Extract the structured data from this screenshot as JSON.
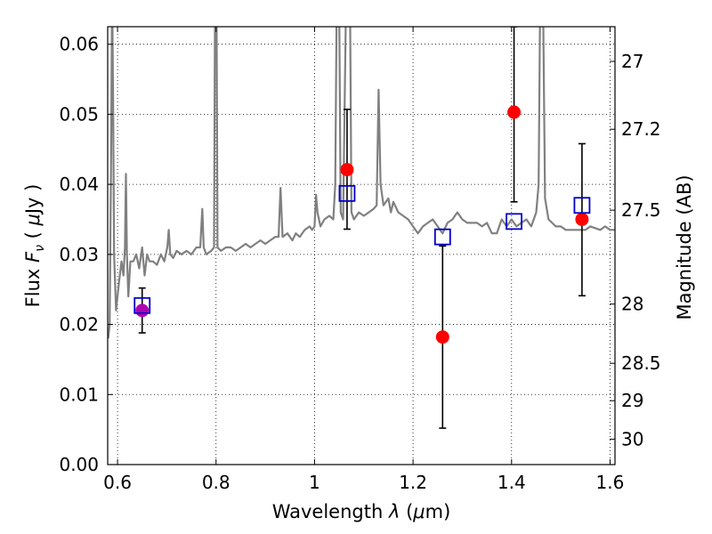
{
  "chart_data": {
    "type": "scatter",
    "xlabel": "Wavelength  λ (μm)",
    "ylabel": "Flux  Fν  ( μJy )",
    "ylabel_right": "Magnitude (AB)",
    "xlim": [
      0.58,
      1.61
    ],
    "ylim": [
      0.0,
      0.0625
    ],
    "grid": true,
    "x_ticks": [
      0.6,
      0.8,
      1.0,
      1.2,
      1.4,
      1.6
    ],
    "x_tick_labels": [
      "0.6",
      "0.8",
      "1",
      "1.2",
      "1.4",
      "1.6"
    ],
    "y_ticks": [
      0.0,
      0.01,
      0.02,
      0.03,
      0.04,
      0.05,
      0.06
    ],
    "y_tick_labels": [
      "0.00",
      "0.01",
      "0.02",
      "0.03",
      "0.04",
      "0.05",
      "0.06"
    ],
    "right_ticks": [
      {
        "mag": 27,
        "label": "27"
      },
      {
        "mag": 27.2,
        "label": "27.2"
      },
      {
        "mag": 27.5,
        "label": "27.5"
      },
      {
        "mag": 28,
        "label": "28"
      },
      {
        "mag": 28.5,
        "label": "28.5"
      },
      {
        "mag": 29,
        "label": "29"
      },
      {
        "mag": 30,
        "label": "30"
      }
    ],
    "series": [
      {
        "kind": "model_spectrum",
        "color": "#808080",
        "points": [
          [
            0.581,
            0.018
          ],
          [
            0.584,
            0.02
          ],
          [
            0.587,
            0.045
          ],
          [
            0.589,
            0.068
          ],
          [
            0.591,
            0.052
          ],
          [
            0.593,
            0.03
          ],
          [
            0.597,
            0.022
          ],
          [
            0.603,
            0.026
          ],
          [
            0.608,
            0.029
          ],
          [
            0.612,
            0.027
          ],
          [
            0.615,
            0.031
          ],
          [
            0.617,
            0.0415
          ],
          [
            0.619,
            0.03
          ],
          [
            0.622,
            0.024
          ],
          [
            0.626,
            0.029
          ],
          [
            0.632,
            0.029
          ],
          [
            0.638,
            0.03
          ],
          [
            0.644,
            0.028
          ],
          [
            0.65,
            0.031
          ],
          [
            0.655,
            0.027
          ],
          [
            0.66,
            0.03
          ],
          [
            0.665,
            0.029
          ],
          [
            0.672,
            0.029
          ],
          [
            0.68,
            0.0285
          ],
          [
            0.688,
            0.03
          ],
          [
            0.695,
            0.029
          ],
          [
            0.701,
            0.031
          ],
          [
            0.704,
            0.0335
          ],
          [
            0.707,
            0.03
          ],
          [
            0.713,
            0.0295
          ],
          [
            0.72,
            0.0305
          ],
          [
            0.73,
            0.03
          ],
          [
            0.74,
            0.0305
          ],
          [
            0.75,
            0.03
          ],
          [
            0.76,
            0.031
          ],
          [
            0.768,
            0.031
          ],
          [
            0.772,
            0.0365
          ],
          [
            0.775,
            0.031
          ],
          [
            0.78,
            0.03
          ],
          [
            0.79,
            0.0305
          ],
          [
            0.796,
            0.031
          ],
          [
            0.798,
            0.066
          ],
          [
            0.801,
            0.066
          ],
          [
            0.803,
            0.031
          ],
          [
            0.81,
            0.0305
          ],
          [
            0.82,
            0.031
          ],
          [
            0.83,
            0.031
          ],
          [
            0.84,
            0.0305
          ],
          [
            0.85,
            0.031
          ],
          [
            0.86,
            0.0315
          ],
          [
            0.87,
            0.031
          ],
          [
            0.88,
            0.0315
          ],
          [
            0.89,
            0.032
          ],
          [
            0.9,
            0.0315
          ],
          [
            0.91,
            0.032
          ],
          [
            0.92,
            0.0325
          ],
          [
            0.927,
            0.0325
          ],
          [
            0.931,
            0.0395
          ],
          [
            0.935,
            0.0325
          ],
          [
            0.945,
            0.033
          ],
          [
            0.955,
            0.032
          ],
          [
            0.962,
            0.033
          ],
          [
            0.97,
            0.0325
          ],
          [
            0.98,
            0.0335
          ],
          [
            0.99,
            0.034
          ],
          [
            0.995,
            0.0335
          ],
          [
            1.0,
            0.034
          ],
          [
            1.003,
            0.0385
          ],
          [
            1.006,
            0.036
          ],
          [
            1.012,
            0.034
          ],
          [
            1.02,
            0.035
          ],
          [
            1.03,
            0.0355
          ],
          [
            1.038,
            0.035
          ],
          [
            1.042,
            0.04
          ],
          [
            1.045,
            0.066
          ],
          [
            1.05,
            0.066
          ],
          [
            1.053,
            0.036
          ],
          [
            1.058,
            0.035
          ],
          [
            1.064,
            0.066
          ],
          [
            1.072,
            0.066
          ],
          [
            1.075,
            0.036
          ],
          [
            1.08,
            0.035
          ],
          [
            1.09,
            0.036
          ],
          [
            1.1,
            0.0355
          ],
          [
            1.11,
            0.036
          ],
          [
            1.12,
            0.0365
          ],
          [
            1.126,
            0.037
          ],
          [
            1.13,
            0.0535
          ],
          [
            1.134,
            0.04
          ],
          [
            1.14,
            0.037
          ],
          [
            1.15,
            0.038
          ],
          [
            1.155,
            0.036
          ],
          [
            1.16,
            0.0375
          ],
          [
            1.17,
            0.036
          ],
          [
            1.18,
            0.0355
          ],
          [
            1.19,
            0.035
          ],
          [
            1.2,
            0.034
          ],
          [
            1.21,
            0.033
          ],
          [
            1.22,
            0.034
          ],
          [
            1.23,
            0.0345
          ],
          [
            1.24,
            0.035
          ],
          [
            1.25,
            0.034
          ],
          [
            1.26,
            0.033
          ],
          [
            1.27,
            0.0345
          ],
          [
            1.28,
            0.035
          ],
          [
            1.29,
            0.036
          ],
          [
            1.3,
            0.035
          ],
          [
            1.31,
            0.0345
          ],
          [
            1.32,
            0.0345
          ],
          [
            1.33,
            0.0345
          ],
          [
            1.34,
            0.034
          ],
          [
            1.35,
            0.0345
          ],
          [
            1.36,
            0.033
          ],
          [
            1.37,
            0.033
          ],
          [
            1.38,
            0.035
          ],
          [
            1.385,
            0.0345
          ],
          [
            1.39,
            0.034
          ],
          [
            1.4,
            0.035
          ],
          [
            1.41,
            0.034
          ],
          [
            1.42,
            0.0345
          ],
          [
            1.43,
            0.035
          ],
          [
            1.44,
            0.034
          ],
          [
            1.45,
            0.036
          ],
          [
            1.455,
            0.04
          ],
          [
            1.458,
            0.066
          ],
          [
            1.464,
            0.066
          ],
          [
            1.468,
            0.038
          ],
          [
            1.475,
            0.035
          ],
          [
            1.49,
            0.034
          ],
          [
            1.5,
            0.034
          ],
          [
            1.51,
            0.0335
          ],
          [
            1.53,
            0.0335
          ],
          [
            1.55,
            0.0335
          ],
          [
            1.56,
            0.034
          ],
          [
            1.58,
            0.0335
          ],
          [
            1.59,
            0.034
          ],
          [
            1.6,
            0.0335
          ],
          [
            1.61,
            0.0335
          ]
        ]
      },
      {
        "kind": "observed",
        "color": "#ff0000",
        "points": [
          {
            "x": 1.066,
            "y": 0.0421,
            "yerr_low": 0.0336,
            "yerr_high": 0.0507
          },
          {
            "x": 1.26,
            "y": 0.0182,
            "yerr_low": 0.0052,
            "yerr_high": 0.0312
          },
          {
            "x": 1.405,
            "y": 0.0503,
            "yerr_low": 0.0375,
            "yerr_high": 0.0625
          },
          {
            "x": 1.543,
            "y": 0.035,
            "yerr_low": 0.0241,
            "yerr_high": 0.0458
          }
        ]
      },
      {
        "kind": "observed_alt",
        "color": "#b000b0",
        "points": [
          {
            "x": 0.65,
            "y": 0.022,
            "yerr_low": 0.0188,
            "yerr_high": 0.0252
          }
        ]
      },
      {
        "kind": "model_photometry",
        "color": "#0000cc",
        "points": [
          {
            "x": 0.65,
            "y": 0.0227
          },
          {
            "x": 1.066,
            "y": 0.0387
          },
          {
            "x": 1.26,
            "y": 0.0325
          },
          {
            "x": 1.405,
            "y": 0.0347
          },
          {
            "x": 1.543,
            "y": 0.037
          }
        ]
      }
    ]
  }
}
